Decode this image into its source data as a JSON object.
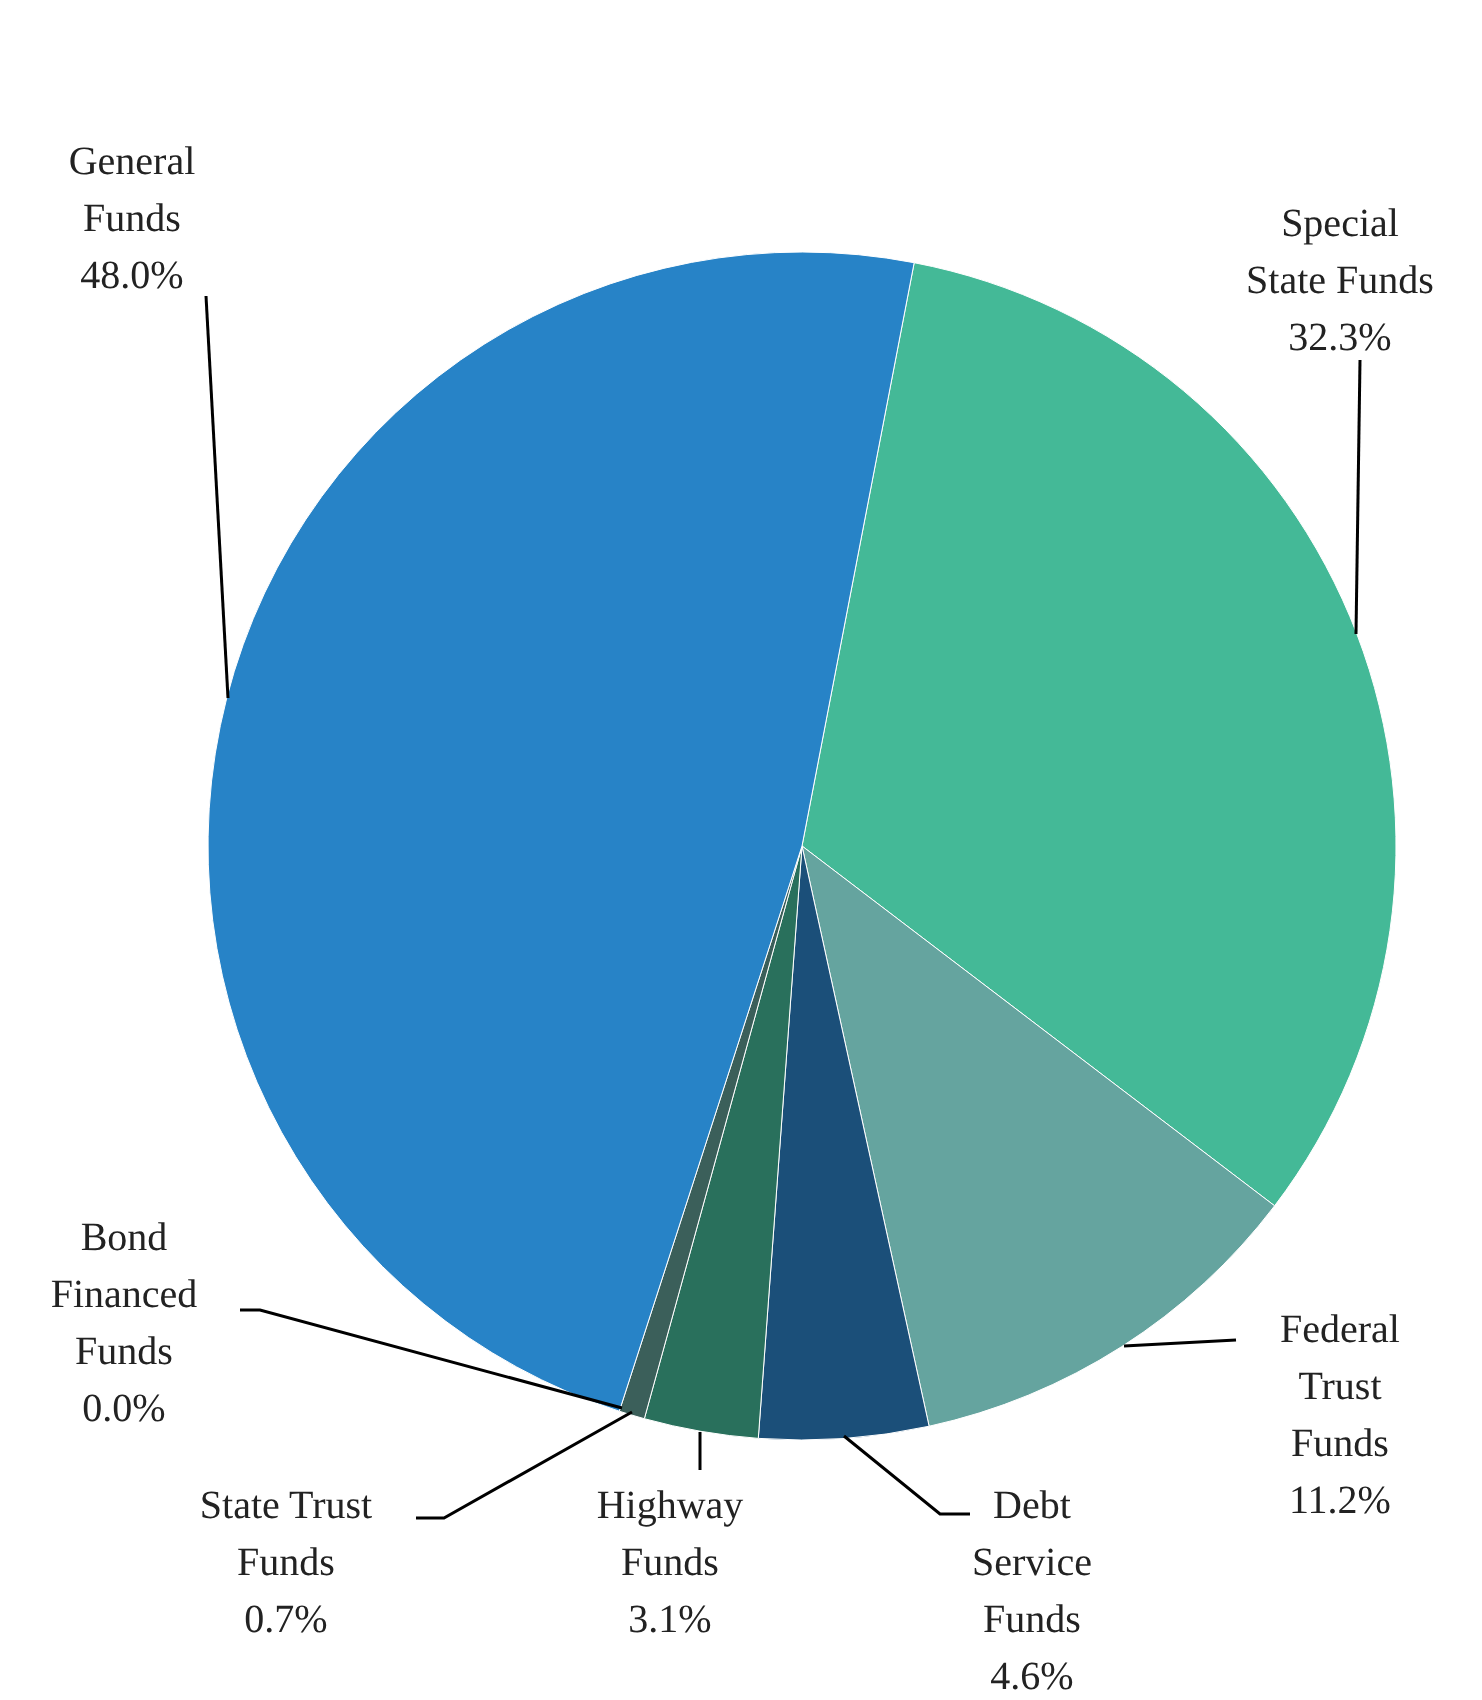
{
  "chart_data": {
    "type": "pie",
    "categories": [
      "Special State Funds",
      "Federal Trust Funds",
      "Debt Service Funds",
      "Highway Funds",
      "State Trust Funds",
      "Bond Financed Funds",
      "General Funds"
    ],
    "values": [
      32.3,
      11.2,
      4.6,
      3.1,
      0.7,
      0.0,
      48.0
    ],
    "value_labels": [
      "32.3%",
      "11.2%",
      "4.6%",
      "3.1%",
      "0.7%",
      "0.0%",
      "48.0%"
    ],
    "colors": [
      "#44b997",
      "#65a49f",
      "#1b4f79",
      "#29705c",
      "#3b5f5a",
      null,
      "#2783c7"
    ]
  }
}
